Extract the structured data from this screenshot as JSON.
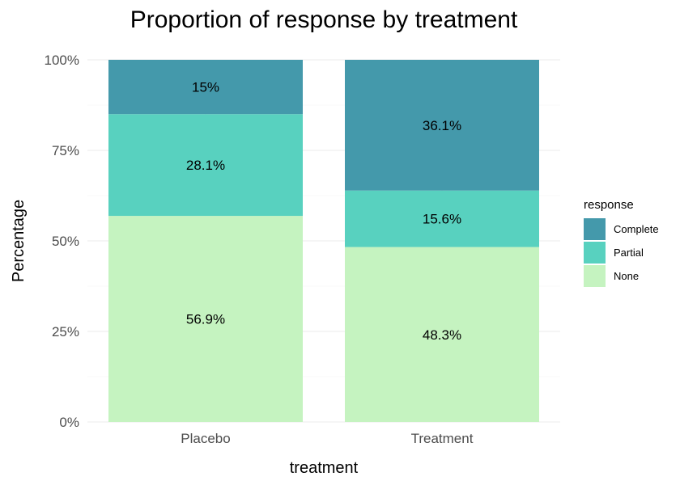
{
  "chart_data": {
    "type": "bar",
    "stacked": true,
    "title": "Proportion of response by treatment",
    "xlabel": "treatment",
    "ylabel": "Percentage",
    "categories": [
      "Placebo",
      "Treatment"
    ],
    "ylim": [
      0,
      100
    ],
    "yticks": [
      0,
      25,
      50,
      75,
      100
    ],
    "ytick_labels": [
      "0%",
      "25%",
      "50%",
      "75%",
      "100%"
    ],
    "grid": true,
    "legend": {
      "title": "response",
      "placement": "right"
    },
    "series": [
      {
        "name": "None",
        "values": [
          56.9,
          48.3
        ],
        "labels": [
          "56.9%",
          "48.3%"
        ],
        "color": "#c5f3c0"
      },
      {
        "name": "Partial",
        "values": [
          28.1,
          15.6
        ],
        "labels": [
          "28.1%",
          "15.6%"
        ],
        "color": "#58d1bf"
      },
      {
        "name": "Complete",
        "values": [
          15,
          36.1
        ],
        "labels": [
          "15%",
          "36.1%"
        ],
        "color": "#4499ab"
      }
    ]
  }
}
